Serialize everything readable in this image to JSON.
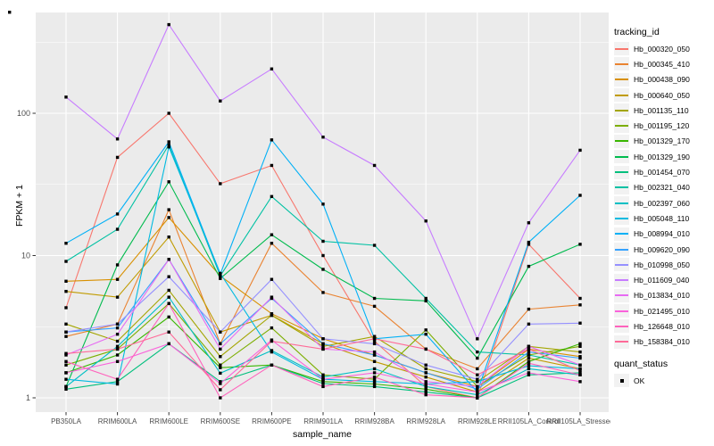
{
  "figure": {
    "background": "#FFFFFF",
    "panel_background": "#EBEBEB",
    "gridline_major_color": "#FFFFFF",
    "gridline_minor_color": "#FFFFFF",
    "tick_label_color": "#4D4D4D",
    "point_color": "#000000"
  },
  "y_axis": {
    "title": "FPKM + 1",
    "tick_labels": [
      "100",
      "10",
      "1"
    ],
    "tick_values": [
      100,
      10,
      1
    ],
    "minor_tick_values": [
      316.23,
      31.62,
      3.162
    ]
  },
  "x_axis": {
    "title": "sample_name"
  },
  "legend": {
    "tracking_title": "tracking_id",
    "quant_title": "quant_status",
    "quant_items": [
      {
        "label": "OK",
        "marker": "black-square"
      }
    ],
    "key_background": "#F2F2F2"
  },
  "chart_data": {
    "type": "line",
    "title": "",
    "xlabel": "sample_name",
    "ylabel": "FPKM + 1",
    "yscale": "log10",
    "ylim": [
      0.8,
      520
    ],
    "grid": true,
    "legend_position": "right",
    "point_marker": "filled-square",
    "x": [
      "PB350LA",
      "RRIM600LA",
      "RRIM600LE",
      "RRIM600SE",
      "RRIM600PE",
      "RRIM901LA",
      "RRIM928BA",
      "RRIM928LA",
      "RRIM928LE",
      "RRII105LA_Control",
      "RRII105LA_Stressed"
    ],
    "series": [
      {
        "name": "Hb_000320_050",
        "color": "#F8766D",
        "values": [
          4.3,
          49,
          100,
          32,
          43,
          10,
          2.5,
          1.2,
          1.0,
          12,
          5.0
        ]
      },
      {
        "name": "Hb_000345_410",
        "color": "#EA8331",
        "values": [
          2.7,
          3.3,
          21,
          2.4,
          12.2,
          5.5,
          4.4,
          2.2,
          1.6,
          4.2,
          4.5
        ]
      },
      {
        "name": "Hb_000438_090",
        "color": "#D89000",
        "values": [
          6.6,
          6.8,
          18.5,
          7.2,
          3.9,
          2.6,
          2.0,
          1.5,
          1.2,
          2.2,
          1.95
        ]
      },
      {
        "name": "Hb_000640_050",
        "color": "#C09B00",
        "values": [
          5.6,
          5.1,
          13.5,
          2.9,
          3.8,
          2.4,
          1.8,
          1.4,
          1.1,
          1.9,
          1.6
        ]
      },
      {
        "name": "Hb_001135_110",
        "color": "#A3A500",
        "values": [
          3.3,
          2.5,
          5.7,
          1.95,
          3.8,
          2.3,
          2.7,
          1.6,
          1.3,
          2.3,
          2.1
        ]
      },
      {
        "name": "Hb_001195_120",
        "color": "#7CAE00",
        "values": [
          1.7,
          2.2,
          4.6,
          1.7,
          3.1,
          1.45,
          1.35,
          3.0,
          1.2,
          2.0,
          2.3
        ]
      },
      {
        "name": "Hb_001329_170",
        "color": "#39B600",
        "values": [
          1.5,
          2.0,
          3.7,
          1.63,
          1.7,
          1.3,
          1.25,
          1.15,
          1.0,
          1.8,
          2.4
        ]
      },
      {
        "name": "Hb_001329_190",
        "color": "#00BB4E",
        "values": [
          1.2,
          8.6,
          33,
          6.9,
          14,
          8.0,
          5.0,
          4.8,
          1.9,
          8.4,
          12
        ]
      },
      {
        "name": "Hb_001454_070",
        "color": "#00BF7D",
        "values": [
          1.15,
          1.3,
          2.4,
          1.3,
          1.7,
          1.26,
          1.2,
          1.1,
          1.0,
          1.45,
          1.5
        ]
      },
      {
        "name": "Hb_002321_040",
        "color": "#00C1A3",
        "values": [
          9.1,
          15.3,
          60,
          7.2,
          26,
          12.6,
          11.8,
          5.0,
          2.1,
          2.0,
          1.7
        ]
      },
      {
        "name": "Hb_002397_060",
        "color": "#00BFC4",
        "values": [
          1.2,
          2.3,
          5.1,
          1.49,
          2.15,
          1.4,
          1.6,
          1.2,
          1.05,
          1.6,
          1.45
        ]
      },
      {
        "name": "Hb_005048_110",
        "color": "#00BAE0",
        "values": [
          1.35,
          1.25,
          58,
          7.5,
          2.1,
          1.35,
          1.3,
          1.25,
          1.3,
          1.68,
          1.6
        ]
      },
      {
        "name": "Hb_008994_010",
        "color": "#00B0F6",
        "values": [
          12.2,
          19.6,
          63,
          7.4,
          65,
          23,
          2.6,
          2.8,
          1.1,
          12.4,
          26.5
        ]
      },
      {
        "name": "Hb_009620_090",
        "color": "#35A2FF",
        "values": [
          2.9,
          3.1,
          9.4,
          2.4,
          5.0,
          2.4,
          2.0,
          1.5,
          1.15,
          2.1,
          1.9
        ]
      },
      {
        "name": "Hb_010998_050",
        "color": "#9590FF",
        "values": [
          2.9,
          3.3,
          7.1,
          2.9,
          6.8,
          2.6,
          2.4,
          1.7,
          1.35,
          3.3,
          3.35
        ]
      },
      {
        "name": "Hb_011609_040",
        "color": "#C77CFF",
        "values": [
          130,
          66,
          420,
          122,
          205,
          68,
          43,
          17.5,
          2.6,
          17,
          55
        ]
      },
      {
        "name": "Hb_013834_010",
        "color": "#E76BF3",
        "values": [
          2.0,
          2.8,
          9.4,
          2.2,
          5.1,
          2.2,
          2.1,
          1.3,
          1.2,
          2.3,
          1.7
        ]
      },
      {
        "name": "Hb_021495_010",
        "color": "#FA62DB",
        "values": [
          1.5,
          1.8,
          2.4,
          1.26,
          2.55,
          1.35,
          1.5,
          1.25,
          1.1,
          1.5,
          1.3
        ]
      },
      {
        "name": "Hb_126648_010",
        "color": "#FF62BC",
        "values": [
          1.8,
          1.35,
          4.6,
          1.0,
          1.7,
          1.2,
          1.4,
          1.05,
          1.0,
          1.75,
          1.45
        ]
      },
      {
        "name": "Hb_158384_010",
        "color": "#FF6A98",
        "values": [
          2.05,
          2.2,
          2.9,
          1.14,
          2.5,
          2.2,
          2.6,
          2.2,
          1.45,
          2.2,
          1.55
        ]
      }
    ]
  }
}
